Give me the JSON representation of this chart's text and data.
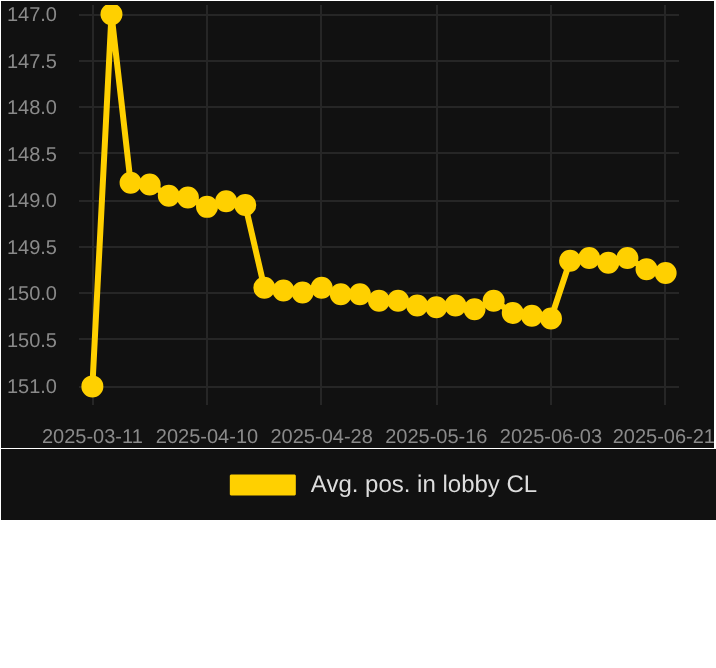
{
  "chart_data": {
    "type": "line",
    "categories": [
      "2025-03-11",
      null,
      null,
      null,
      null,
      null,
      "2025-04-10",
      null,
      null,
      null,
      null,
      null,
      "2025-04-28",
      null,
      null,
      null,
      null,
      null,
      "2025-05-16",
      null,
      null,
      null,
      null,
      null,
      "2025-06-03",
      null,
      null,
      null,
      null,
      null,
      "2025-06-21"
    ],
    "series": [
      {
        "name": "Avg. pos. in lobby CL",
        "color": "#ffd000",
        "values": [
          151.0,
          147.0,
          148.81,
          148.83,
          148.95,
          148.97,
          149.07,
          149.01,
          149.05,
          149.94,
          149.97,
          149.99,
          149.94,
          150.01,
          150.01,
          150.08,
          150.08,
          150.13,
          150.15,
          150.13,
          150.17,
          150.08,
          150.21,
          150.24,
          150.27,
          149.65,
          149.62,
          149.67,
          149.62,
          149.74,
          149.78
        ]
      }
    ],
    "ylim": [
      151.2,
      146.9
    ],
    "yticks": [
      {
        "value": 147.0,
        "label": "147.0"
      },
      {
        "value": 147.5,
        "label": "147.5"
      },
      {
        "value": 148.0,
        "label": "148.0"
      },
      {
        "value": 148.5,
        "label": "148.5"
      },
      {
        "value": 149.0,
        "label": "149.0"
      },
      {
        "value": 149.5,
        "label": "149.5"
      },
      {
        "value": 150.0,
        "label": "150.0"
      },
      {
        "value": 150.5,
        "label": "150.5"
      },
      {
        "value": 151.0,
        "label": "151.0"
      }
    ],
    "grid": true,
    "legend": "bottom",
    "marker": "circle",
    "line_style": "solid"
  }
}
